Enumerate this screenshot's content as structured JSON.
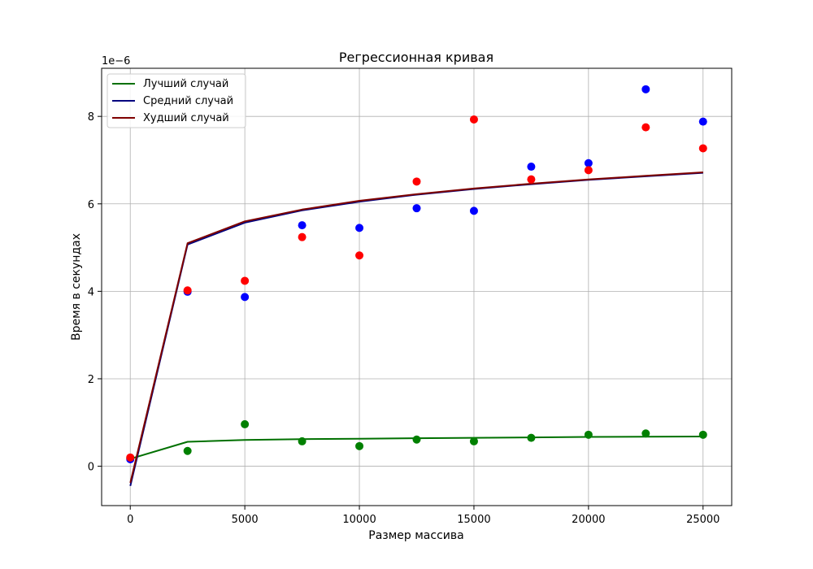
{
  "chart_data": {
    "type": "line",
    "title": "Регрессионная кривая",
    "xlabel": "Размер массива",
    "ylabel": "Время в секундах",
    "y_offset_label": "1e−6",
    "xlim": [
      -1250,
      26250
    ],
    "ylim": [
      -0.9,
      9.1
    ],
    "x_ticks": [
      0,
      5000,
      10000,
      15000,
      20000,
      25000
    ],
    "x_tick_labels": [
      "0",
      "5000",
      "10000",
      "15000",
      "20000",
      "25000"
    ],
    "y_ticks": [
      0,
      2,
      4,
      6,
      8
    ],
    "y_tick_labels": [
      "0",
      "2",
      "4",
      "6",
      "8"
    ],
    "grid": true,
    "legend_position": "top-left",
    "x": [
      1,
      2500,
      5000,
      7500,
      10000,
      12500,
      15000,
      17500,
      20000,
      22500,
      25000
    ],
    "series": [
      {
        "name": "Лучший случай",
        "color": "#007000",
        "points": [
          0.18,
          0.35,
          0.96,
          0.57,
          0.46,
          0.61,
          0.57,
          0.65,
          0.72,
          0.75,
          0.72
        ],
        "curve": [
          0.17,
          0.56,
          0.6,
          0.62,
          0.63,
          0.64,
          0.65,
          0.66,
          0.67,
          0.675,
          0.68
        ]
      },
      {
        "name": "Средний случай",
        "color": "#00007f",
        "points": [
          0.16,
          3.99,
          3.87,
          5.51,
          5.45,
          5.9,
          5.84,
          6.85,
          6.93,
          8.62,
          7.88
        ],
        "curve": [
          -0.45,
          5.07,
          5.57,
          5.85,
          6.05,
          6.21,
          6.34,
          6.45,
          6.55,
          6.63,
          6.71
        ]
      },
      {
        "name": "Худший случай",
        "color": "#7f0000",
        "points": [
          0.2,
          4.02,
          4.24,
          5.24,
          4.82,
          6.51,
          7.93,
          6.56,
          6.77,
          7.75,
          7.27
        ],
        "curve": [
          -0.38,
          5.1,
          5.6,
          5.87,
          6.07,
          6.22,
          6.35,
          6.46,
          6.56,
          6.64,
          6.72
        ]
      }
    ],
    "point_colors": [
      "#008000",
      "#0000ff",
      "#ff0000"
    ]
  }
}
